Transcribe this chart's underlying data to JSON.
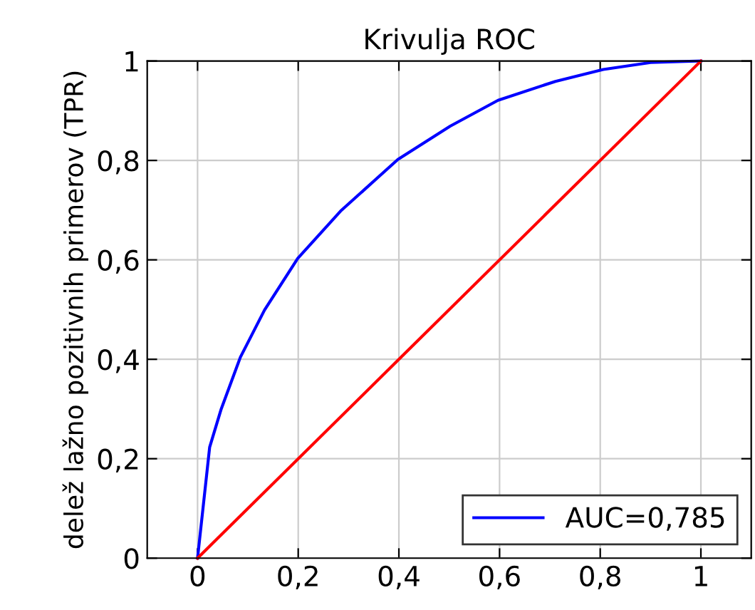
{
  "chart_data": {
    "type": "line",
    "title": "Krivulja ROC",
    "ylabel": "delež lažno pozitivnih primerov (TPR)",
    "series": [
      {
        "name": "AUC=0,785",
        "color": "#0000ff",
        "x": [
          0,
          0.024,
          0.047,
          0.085,
          0.133,
          0.199,
          0.284,
          0.398,
          0.502,
          0.597,
          0.711,
          0.806,
          0.9,
          1
        ],
        "values": [
          0,
          0.223,
          0.3,
          0.404,
          0.499,
          0.603,
          0.698,
          0.802,
          0.869,
          0.921,
          0.959,
          0.983,
          0.997,
          1
        ]
      },
      {
        "color": "#ff0000",
        "x": [
          0,
          1
        ],
        "values": [
          0,
          1
        ]
      }
    ],
    "xlim": [
      -0.1,
      1.1
    ],
    "ylim": [
      0,
      1
    ],
    "xticks": [
      0,
      {
        "value": 0.2,
        "label": "0,2"
      },
      {
        "value": 0.4,
        "label": "0,4"
      },
      {
        "value": 0.6,
        "label": "0,6"
      },
      {
        "value": 0.8,
        "label": "0,8"
      },
      1
    ],
    "yticks": [
      0,
      {
        "value": 0.2,
        "label": "0,2"
      },
      {
        "value": 0.4,
        "label": "0,4"
      },
      {
        "value": 0.6,
        "label": "0,6"
      },
      {
        "value": 0.8,
        "label": "0,8"
      },
      1
    ],
    "grid": true,
    "legend": "bottom right",
    "marker": "none",
    "line_style": "solid"
  }
}
